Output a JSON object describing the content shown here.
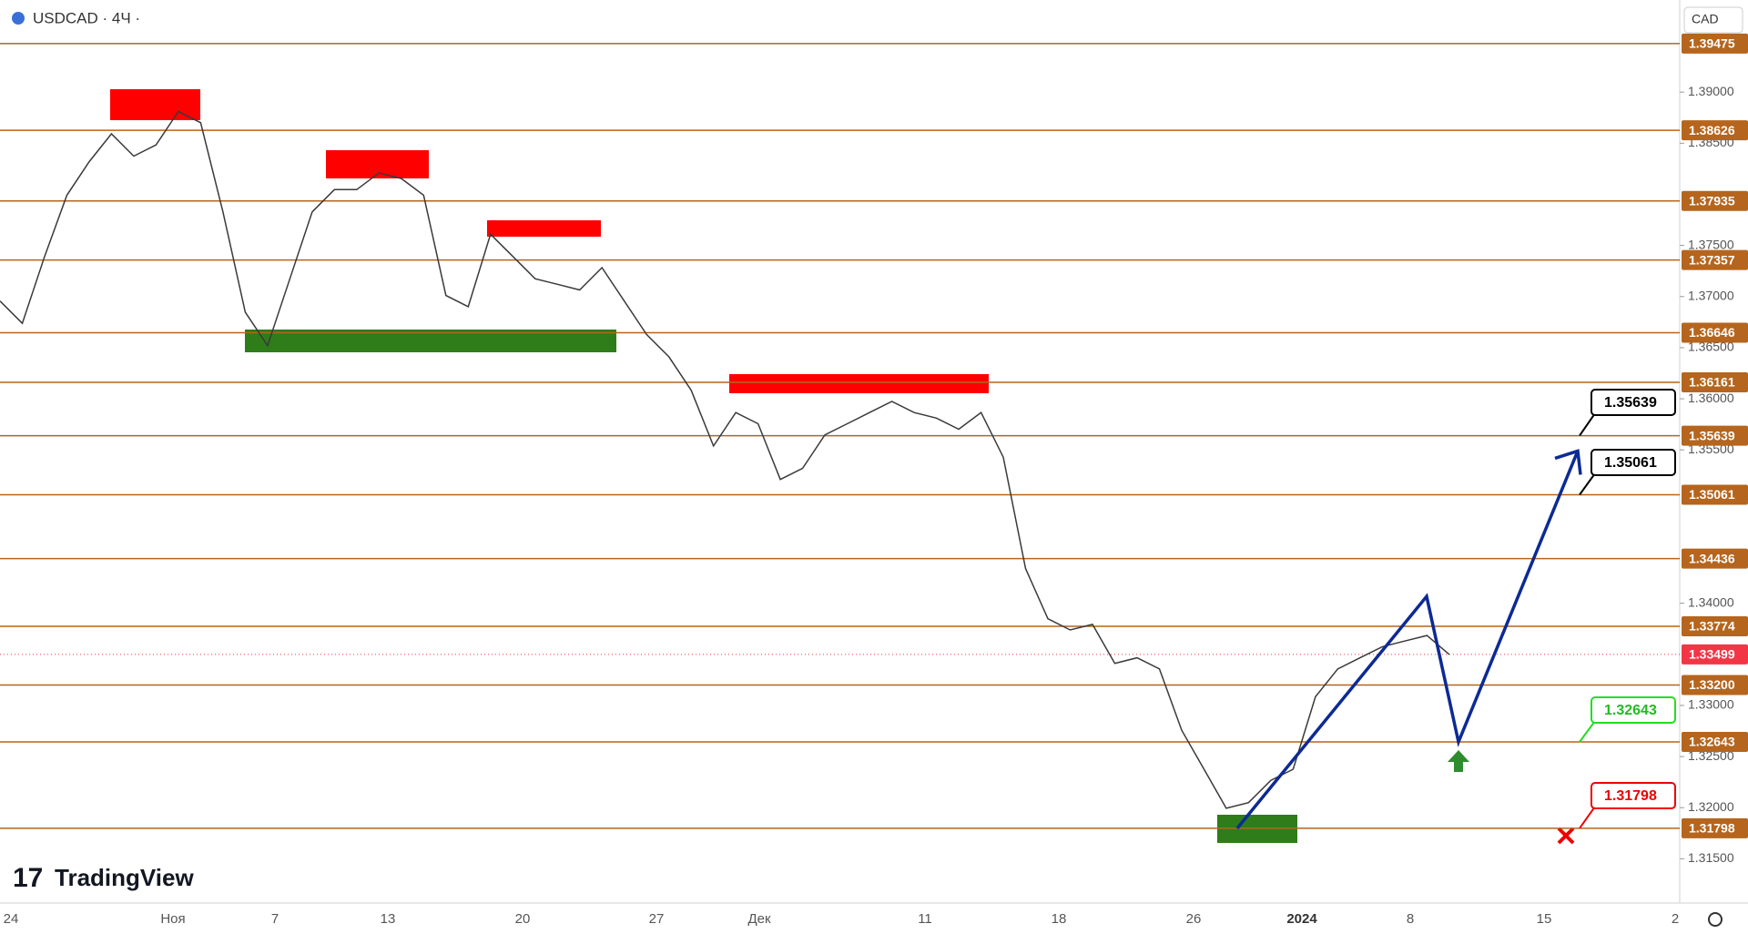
{
  "header": {
    "symbol": "USDCAD · 4Ч ·",
    "currency": "CAD",
    "brand": "TradingView"
  },
  "chart_data": {
    "type": "line",
    "color": "#3a3a3a",
    "values": [
      1.36956,
      1.36738,
      1.37392,
      1.37992,
      1.38319,
      1.38592,
      1.38374,
      1.38483,
      1.3881,
      1.38701,
      1.37828,
      1.36847,
      1.3652,
      1.37174,
      1.37828,
      1.38046,
      1.38046,
      1.3821,
      1.38155,
      1.37992,
      1.3701,
      1.36901,
      1.3761,
      1.37392,
      1.37174,
      1.3712,
      1.37065,
      1.37283,
      1.36956,
      1.36629,
      1.36411,
      1.36083,
      1.35538,
      1.35865,
      1.35756,
      1.35211,
      1.3532,
      1.35647,
      1.35756,
      1.35865,
      1.35974,
      1.35865,
      1.35811,
      1.35702,
      1.35865,
      1.35429,
      1.34339,
      1.33848,
      1.33739,
      1.33793,
      1.33412,
      1.33466,
      1.33357,
      1.32757,
      1.32376,
      1.31994,
      1.32049,
      1.32267,
      1.32376,
      1.33085,
      1.33357,
      1.33466,
      1.33575,
      1.3363,
      1.33684,
      1.33499
    ],
    "ylim": [
      1.31067,
      1.39901
    ],
    "yticks": [
      {
        "value": 1.39,
        "label": "1.39000"
      },
      {
        "value": 1.385,
        "label": "1.38500"
      },
      {
        "value": 1.375,
        "label": "1.37500"
      },
      {
        "value": 1.37,
        "label": "1.37000"
      },
      {
        "value": 1.365,
        "label": "1.36500"
      },
      {
        "value": 1.36,
        "label": "1.36000"
      },
      {
        "value": 1.355,
        "label": "1.35500"
      },
      {
        "value": 1.34,
        "label": "1.34000"
      },
      {
        "value": 1.33,
        "label": "1.33000"
      },
      {
        "value": 1.325,
        "label": "1.32500"
      },
      {
        "value": 1.32,
        "label": "1.32000"
      },
      {
        "value": 1.315,
        "label": "1.31500"
      }
    ],
    "levels": [
      1.39475,
      1.38626,
      1.37935,
      1.37357,
      1.36646,
      1.36161,
      1.35639,
      1.35061,
      1.34436,
      1.33774,
      1.332,
      1.32643,
      1.31798
    ],
    "level_labels": [
      "1.39475",
      "1.38626",
      "1.37935",
      "1.37357",
      "1.36646",
      "1.36161",
      "1.35639",
      "1.35061",
      "1.34436",
      "1.33774",
      "1.33200",
      "1.32643",
      "1.31798"
    ],
    "level_color": "#b5651d",
    "last_price": 1.33499,
    "last_label": "1.33499",
    "last_color": "#f23645",
    "projection": [
      1.31798,
      1.34066,
      1.32643,
      1.35489
    ],
    "projection_color": "#0d2a94",
    "callouts": [
      "1.35639",
      "1.35061",
      "1.32643",
      "1.31798"
    ],
    "x_labels": [
      "24",
      "Ноя",
      "7",
      "13",
      "20",
      "27",
      "Дек",
      "11",
      "18",
      "26",
      "2024",
      "8",
      "15",
      "2"
    ]
  }
}
